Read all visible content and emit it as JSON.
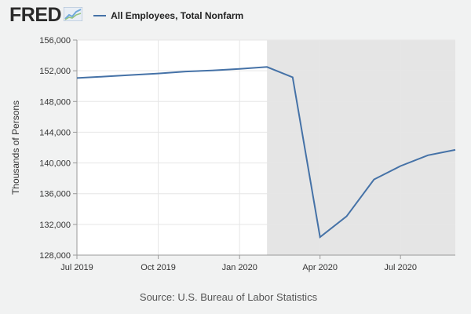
{
  "brand": {
    "logo_text": "FRED",
    "logo_graph_icon": "line-graph-icon"
  },
  "legend": {
    "series_label": "All Employees, Total Nonfarm",
    "swatch_color": "#4572a7"
  },
  "source_text": "Source: U.S. Bureau of Labor Statistics",
  "colors": {
    "line": "#4572a7",
    "recession_shade": "#e5e5e5",
    "plot_bg": "#ffffff",
    "page_bg": "#f1f2f2",
    "grid": "#e6e6e6"
  },
  "chart_data": {
    "type": "line",
    "ylabel": "Thousands of Persons",
    "xlabel": "",
    "ylim": [
      128000,
      156000
    ],
    "xlim": [
      "2019-07-01",
      "2020-09-01"
    ],
    "yticks": [
      128000,
      132000,
      136000,
      140000,
      144000,
      148000,
      152000,
      156000
    ],
    "ytick_labels": [
      "128,000",
      "132,000",
      "136,000",
      "140,000",
      "144,000",
      "148,000",
      "152,000",
      "156,000"
    ],
    "xticks": [
      "2019-07-01",
      "2019-10-01",
      "2020-01-01",
      "2020-04-01",
      "2020-07-01"
    ],
    "xtick_labels": [
      "Jul 2019",
      "Oct 2019",
      "Jan 2020",
      "Apr 2020",
      "Jul 2020"
    ],
    "grid": true,
    "legend_position": "top-left",
    "shaded_region": {
      "start": "2020-02-01",
      "end": "2020-09-01"
    },
    "series": [
      {
        "name": "All Employees, Total Nonfarm",
        "x": [
          "2019-07-01",
          "2019-08-01",
          "2019-09-01",
          "2019-10-01",
          "2019-11-01",
          "2019-12-01",
          "2020-01-01",
          "2020-02-01",
          "2020-03-01",
          "2020-04-01",
          "2020-05-01",
          "2020-06-01",
          "2020-07-01",
          "2020-08-01",
          "2020-09-01"
        ],
        "values": [
          151050,
          151250,
          151450,
          151650,
          151900,
          152050,
          152250,
          152500,
          151150,
          130350,
          133050,
          137850,
          139600,
          141000,
          141700
        ]
      }
    ]
  }
}
